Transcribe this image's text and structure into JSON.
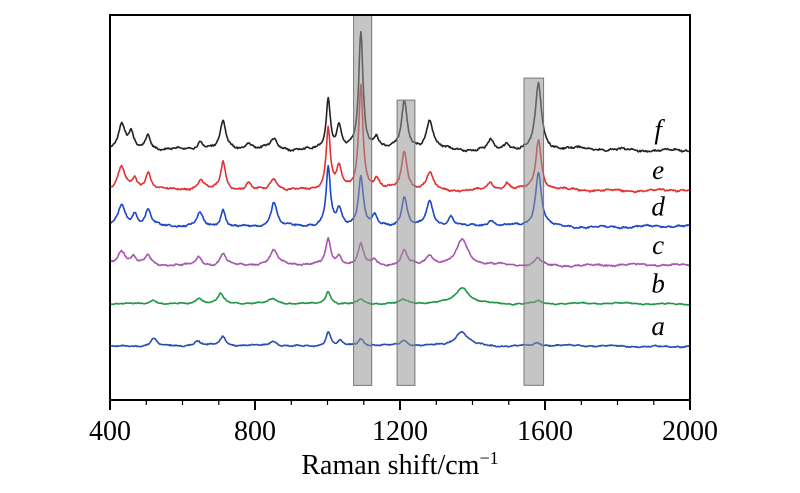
{
  "figure": {
    "xlabel_main": "Raman shift/cm",
    "xlabel_sup": "−1"
  },
  "chart_data": {
    "type": "line",
    "title": "",
    "xlabel": "Raman shift/cm⁻¹",
    "ylabel": "",
    "x_range": [
      400,
      2000
    ],
    "x_ticks": [
      400,
      800,
      1200,
      1600,
      2000
    ],
    "x_minor_step": 100,
    "grid": false,
    "legend_position": "right-inline-labels",
    "axis_color": "#000000",
    "band_fill": "rgba(150,150,150,0.55)",
    "band_stroke": "#777777",
    "highlight_bands": [
      {
        "x1": 1072,
        "x2": 1122,
        "top_frac": 0.0,
        "bottom_frac": 0.962
      },
      {
        "x1": 1192,
        "x2": 1241,
        "top_frac": 0.221,
        "bottom_frac": 0.962
      },
      {
        "x1": 1542,
        "x2": 1596,
        "top_frac": 0.164,
        "bottom_frac": 0.962
      }
    ],
    "peaks_format": "[center_cm-1, height_units, halfwidth_cm-1], y units 0-100 of plot height",
    "series": [
      {
        "name": "spectrum-a",
        "label": "a",
        "color": "#2a4db0",
        "baseline": 14,
        "noise": 0.35,
        "peaks": [
          [
            520,
            2.2,
            10
          ],
          [
            640,
            1.3,
            10
          ],
          [
            712,
            2.4,
            9
          ],
          [
            850,
            1.4,
            12
          ],
          [
            1002,
            3.8,
            8
          ],
          [
            1035,
            1.2,
            8
          ],
          [
            1092,
            1.8,
            9
          ],
          [
            1210,
            1.4,
            10
          ],
          [
            1370,
            3.8,
            22
          ],
          [
            1580,
            0.8,
            12
          ]
        ]
      },
      {
        "name": "spectrum-b",
        "label": "b",
        "color": "#1f9645",
        "baseline": 25,
        "noise": 0.3,
        "peaks": [
          [
            520,
            1.2,
            10
          ],
          [
            645,
            1.6,
            10
          ],
          [
            705,
            2.6,
            9
          ],
          [
            850,
            1.2,
            12
          ],
          [
            1002,
            3.4,
            8
          ],
          [
            1092,
            1.2,
            9
          ],
          [
            1210,
            1.0,
            10
          ],
          [
            1372,
            4.2,
            22
          ],
          [
            1580,
            0.7,
            12
          ]
        ]
      },
      {
        "name": "spectrum-c",
        "label": "c",
        "color": "#a855b0",
        "baseline": 35,
        "noise": 0.45,
        "peaks": [
          [
            432,
            3.5,
            14
          ],
          [
            465,
            1.8,
            8
          ],
          [
            505,
            2.4,
            9
          ],
          [
            645,
            2.2,
            10
          ],
          [
            712,
            3.2,
            9
          ],
          [
            852,
            3.6,
            13
          ],
          [
            1002,
            6.5,
            8
          ],
          [
            1032,
            2.2,
            8
          ],
          [
            1092,
            5.5,
            9
          ],
          [
            1130,
            1.5,
            8
          ],
          [
            1212,
            3.8,
            10
          ],
          [
            1282,
            2.6,
            11
          ],
          [
            1372,
            6.5,
            18
          ],
          [
            1580,
            2.0,
            11
          ]
        ]
      },
      {
        "name": "spectrum-d",
        "label": "d",
        "color": "#1b46c8",
        "baseline": 45,
        "noise": 0.5,
        "peaks": [
          [
            432,
            5.5,
            12
          ],
          [
            468,
            3.0,
            8
          ],
          [
            505,
            4.0,
            9
          ],
          [
            648,
            3.5,
            10
          ],
          [
            712,
            4.5,
            8
          ],
          [
            852,
            6.5,
            10
          ],
          [
            1002,
            15,
            7
          ],
          [
            1032,
            4.0,
            8
          ],
          [
            1092,
            13,
            8
          ],
          [
            1130,
            2.5,
            8
          ],
          [
            1212,
            8,
            9
          ],
          [
            1282,
            6.5,
            11
          ],
          [
            1340,
            2.5,
            10
          ],
          [
            1450,
            1.5,
            10
          ],
          [
            1582,
            14,
            10
          ]
        ]
      },
      {
        "name": "spectrum-e",
        "label": "e",
        "color": "#e23131",
        "baseline": 54.5,
        "noise": 0.5,
        "peaks": [
          [
            432,
            6,
            12
          ],
          [
            468,
            3,
            8
          ],
          [
            505,
            4.5,
            9
          ],
          [
            650,
            2.5,
            9
          ],
          [
            712,
            7.5,
            8
          ],
          [
            782,
            1.8,
            8
          ],
          [
            852,
            3.2,
            12
          ],
          [
            1002,
            16,
            7
          ],
          [
            1032,
            5.5,
            8
          ],
          [
            1092,
            27,
            7
          ],
          [
            1135,
            2.5,
            8
          ],
          [
            1212,
            10,
            9
          ],
          [
            1282,
            4.5,
            11
          ],
          [
            1450,
            2,
            9
          ],
          [
            1495,
            1.8,
            8
          ],
          [
            1582,
            13,
            9
          ]
        ]
      },
      {
        "name": "spectrum-f",
        "label": "f",
        "color": "#222222",
        "baseline": 65,
        "noise": 0.6,
        "peaks": [
          [
            432,
            6.5,
            12
          ],
          [
            458,
            4,
            8
          ],
          [
            505,
            4,
            9
          ],
          [
            650,
            2,
            9
          ],
          [
            712,
            7,
            9
          ],
          [
            782,
            1.8,
            8
          ],
          [
            852,
            2.6,
            13
          ],
          [
            1002,
            13,
            7
          ],
          [
            1032,
            6,
            8
          ],
          [
            1092,
            30,
            7
          ],
          [
            1135,
            3,
            8
          ],
          [
            1212,
            12,
            9
          ],
          [
            1282,
            7.5,
            11
          ],
          [
            1450,
            2.5,
            9
          ],
          [
            1495,
            2,
            8
          ],
          [
            1582,
            17,
            10
          ]
        ]
      }
    ]
  }
}
